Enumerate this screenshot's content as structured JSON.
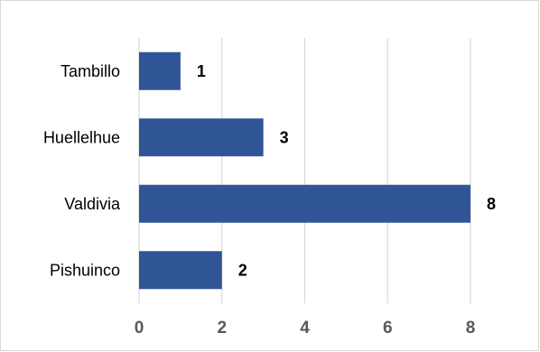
{
  "chart_data": {
    "type": "bar",
    "orientation": "horizontal",
    "categories": [
      "Tambillo",
      "Huellelhue",
      "Valdivia",
      "Pishuinco"
    ],
    "values": [
      1,
      3,
      8,
      2
    ],
    "data_labels": [
      "1",
      "3",
      "8",
      "2"
    ],
    "xlim": [
      0,
      8
    ],
    "x_ticks": [
      0,
      2,
      4,
      6,
      8
    ],
    "x_tick_labels": [
      "0",
      "2",
      "4",
      "6",
      "8"
    ],
    "grid": "vertical",
    "legend": "none",
    "bar_color": "#2f5597",
    "gridline_color": "#d9d9d9",
    "tick_label_color": "#595959",
    "title": "",
    "xlabel": "",
    "ylabel": ""
  }
}
